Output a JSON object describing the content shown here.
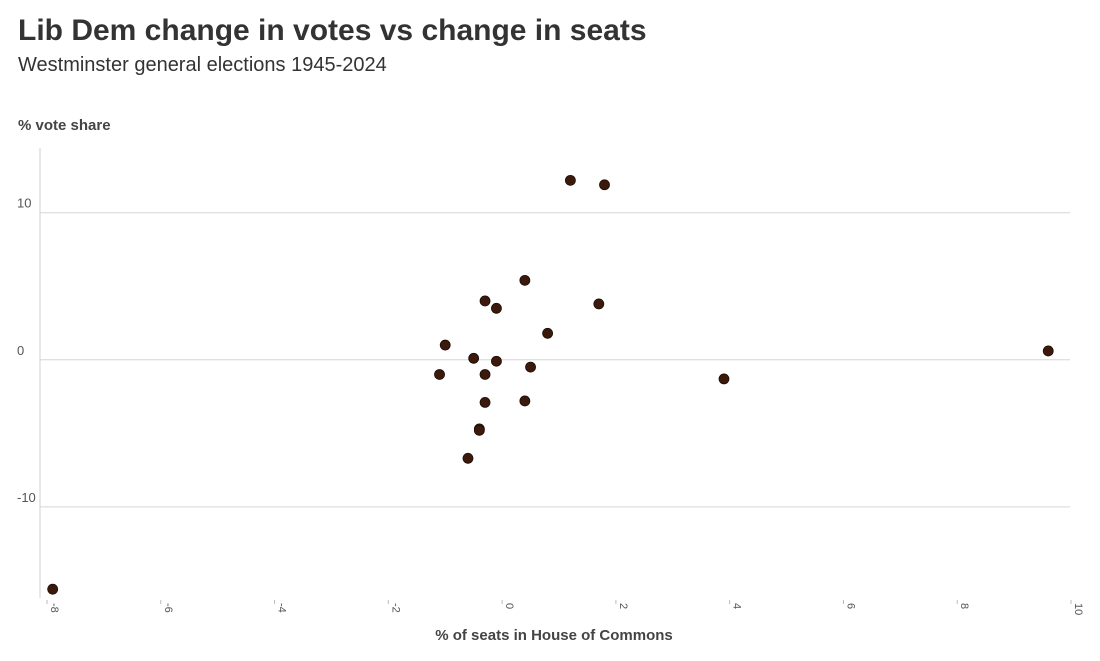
{
  "chart_data": {
    "type": "scatter",
    "title": "Lib Dem change in votes vs change in seats",
    "subtitle": "Westminster general elections 1945-2024",
    "xlabel": "% of seats in House of Commons",
    "ylabel": "% vote share",
    "xlim": [
      -8.1,
      10
    ],
    "ylim": [
      -16.2,
      14.4
    ],
    "x_ticks": [
      -8,
      -6,
      -4,
      -2,
      0,
      2,
      4,
      6,
      8,
      10
    ],
    "x_tick_labels": [
      "-8",
      "-6",
      "-4",
      "-2",
      "0",
      "2",
      "4",
      "6",
      "8",
      "10"
    ],
    "y_ticks": [
      -10,
      0,
      10
    ],
    "y_tick_labels": [
      "-10",
      "0",
      "10"
    ],
    "grid": true,
    "marker_color": "#3b1a0c",
    "points": [
      {
        "x": -7.9,
        "y": -15.6
      },
      {
        "x": 1.2,
        "y": 12.2
      },
      {
        "x": 1.8,
        "y": 11.9
      },
      {
        "x": 0.4,
        "y": 5.4
      },
      {
        "x": -0.3,
        "y": 4.0
      },
      {
        "x": -0.1,
        "y": 3.5
      },
      {
        "x": 1.7,
        "y": 3.8
      },
      {
        "x": 0.8,
        "y": 1.8
      },
      {
        "x": -1.0,
        "y": 1.0
      },
      {
        "x": -0.5,
        "y": 0.1
      },
      {
        "x": -0.1,
        "y": -0.1
      },
      {
        "x": 0.5,
        "y": -0.5
      },
      {
        "x": -1.1,
        "y": -1.0
      },
      {
        "x": -0.3,
        "y": -1.0
      },
      {
        "x": 3.9,
        "y": -1.3
      },
      {
        "x": 9.6,
        "y": 0.6
      },
      {
        "x": -0.3,
        "y": -2.9
      },
      {
        "x": 0.4,
        "y": -2.8
      },
      {
        "x": -0.4,
        "y": -4.7
      },
      {
        "x": -0.4,
        "y": -4.8
      },
      {
        "x": -0.6,
        "y": -6.7
      }
    ]
  }
}
